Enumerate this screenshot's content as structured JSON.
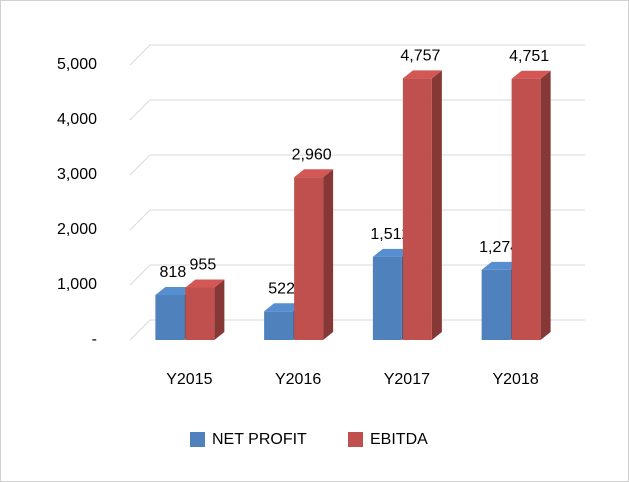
{
  "chart_data": {
    "type": "bar3d",
    "categories": [
      "Y2015",
      "Y2016",
      "Y2017",
      "Y2018"
    ],
    "series": [
      {
        "name": "NET PROFIT",
        "color": "#4f81bd",
        "values": [
          818,
          522,
          1512,
          1274
        ],
        "value_labels": [
          "818",
          "522",
          "1,512",
          "1,274"
        ]
      },
      {
        "name": "EBITDA",
        "color": "#c0504d",
        "values": [
          955,
          2960,
          4757,
          4751
        ],
        "value_labels": [
          "955",
          "2,960",
          "4,757",
          "4,751"
        ]
      }
    ],
    "ylim": [
      0,
      5000
    ],
    "yticks": [
      {
        "value": 0,
        "label": "-"
      },
      {
        "value": 1000,
        "label": "1,000"
      },
      {
        "value": 2000,
        "label": "2,000"
      },
      {
        "value": 3000,
        "label": "3,000"
      },
      {
        "value": 4000,
        "label": "4,000"
      },
      {
        "value": 5000,
        "label": "5,000"
      }
    ],
    "grid": true,
    "legend": "bottom"
  }
}
